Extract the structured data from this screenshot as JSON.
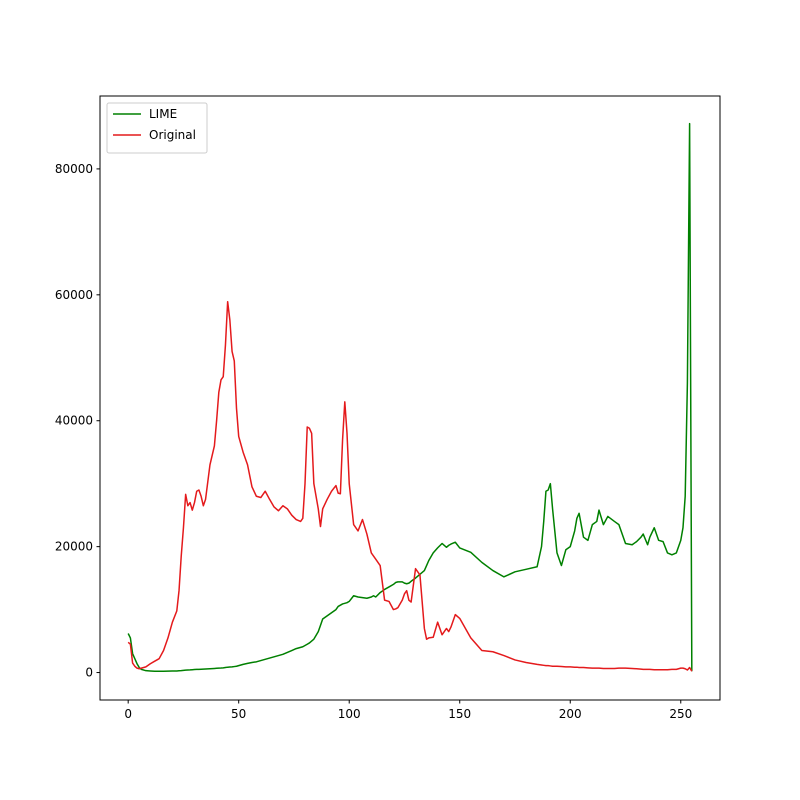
{
  "chart_data": {
    "type": "line",
    "x": [
      0,
      1,
      2,
      3,
      4,
      5,
      6,
      8,
      10,
      12,
      14,
      16,
      18,
      20,
      22,
      23,
      24,
      25,
      26,
      27,
      28,
      29,
      30,
      31,
      32,
      33,
      34,
      35,
      37,
      39,
      40,
      41,
      42,
      43,
      44,
      45,
      46,
      47,
      48,
      49,
      50,
      52,
      54,
      56,
      58,
      60,
      62,
      64,
      66,
      68,
      70,
      72,
      74,
      76,
      78,
      79,
      80,
      81,
      82,
      83,
      84,
      86,
      87,
      88,
      90,
      92,
      94,
      95,
      96,
      97,
      98,
      99,
      100,
      102,
      104,
      106,
      108,
      110,
      111,
      112,
      114,
      116,
      118,
      120,
      121,
      122,
      124,
      125,
      126,
      127,
      128,
      130,
      132,
      134,
      135,
      136,
      138,
      140,
      142,
      144,
      145,
      146,
      148,
      150,
      155,
      160,
      165,
      170,
      175,
      180,
      185,
      187,
      188,
      189,
      190,
      191,
      192,
      194,
      196,
      198,
      200,
      202,
      203,
      204,
      206,
      208,
      210,
      212,
      213,
      215,
      217,
      220,
      222,
      225,
      228,
      230,
      232,
      233,
      235,
      236,
      238,
      240,
      242,
      244,
      246,
      248,
      250,
      251,
      252,
      253,
      254,
      255
    ],
    "series": [
      {
        "name": "LIME",
        "color": "#008000",
        "values": [
          6200,
          5500,
          3000,
          2200,
          1400,
          800,
          500,
          300,
          250,
          200,
          200,
          200,
          220,
          250,
          250,
          280,
          300,
          350,
          380,
          400,
          420,
          450,
          480,
          500,
          500,
          520,
          540,
          560,
          600,
          650,
          680,
          700,
          720,
          750,
          800,
          850,
          880,
          900,
          950,
          1000,
          1100,
          1300,
          1450,
          1600,
          1700,
          1900,
          2100,
          2300,
          2500,
          2700,
          2900,
          3200,
          3500,
          3800,
          4000,
          4100,
          4300,
          4500,
          4700,
          5000,
          5300,
          6500,
          7500,
          8500,
          9000,
          9500,
          10000,
          10500,
          10700,
          10900,
          11000,
          11100,
          11300,
          12200,
          12000,
          11900,
          11800,
          12000,
          12200,
          12000,
          12700,
          13200,
          13600,
          14000,
          14300,
          14400,
          14400,
          14200,
          14100,
          14200,
          14500,
          15000,
          15600,
          16200,
          17000,
          17800,
          19000,
          19800,
          20500,
          19900,
          20200,
          20400,
          20700,
          19800,
          19100,
          17500,
          16200,
          15200,
          16000,
          16400,
          16800,
          20000,
          24000,
          28800,
          29000,
          30000,
          26000,
          19000,
          17000,
          19500,
          20000,
          22500,
          24500,
          25300,
          21500,
          21000,
          23500,
          24000,
          25800,
          23500,
          24800,
          24000,
          23500,
          20500,
          20300,
          20800,
          21500,
          22000,
          20300,
          21500,
          23000,
          21000,
          20800,
          19000,
          18700,
          19000,
          21000,
          23000,
          28000,
          46000,
          87200,
          200
        ]
      },
      {
        "name": "Original",
        "color": "#e41a1c",
        "values": [
          4800,
          4500,
          1500,
          1000,
          700,
          600,
          700,
          900,
          1400,
          1800,
          2200,
          3500,
          5500,
          8000,
          9800,
          13000,
          18500,
          23000,
          28300,
          26500,
          27000,
          25800,
          27000,
          28800,
          29000,
          28000,
          26500,
          27500,
          33000,
          36000,
          40000,
          44500,
          46500,
          47000,
          52000,
          58900,
          56000,
          51000,
          49500,
          42000,
          37500,
          35000,
          33000,
          29500,
          28000,
          27800,
          28800,
          27500,
          26300,
          25700,
          26500,
          26000,
          25000,
          24300,
          24000,
          24500,
          30000,
          39000,
          38800,
          38000,
          30000,
          26000,
          23200,
          26000,
          27500,
          28800,
          29700,
          28500,
          28400,
          37000,
          43000,
          38000,
          30000,
          23500,
          22500,
          24300,
          22000,
          19000,
          18500,
          18000,
          17000,
          11500,
          11300,
          10000,
          10100,
          10300,
          11500,
          12500,
          13000,
          11500,
          11200,
          16500,
          15500,
          7000,
          5300,
          5500,
          5600,
          8000,
          6000,
          7000,
          6500,
          7200,
          9200,
          8600,
          5500,
          3500,
          3300,
          2700,
          2000,
          1600,
          1300,
          1200,
          1150,
          1100,
          1100,
          1050,
          1000,
          1000,
          950,
          900,
          900,
          850,
          850,
          800,
          800,
          750,
          700,
          700,
          700,
          650,
          650,
          650,
          700,
          700,
          650,
          600,
          550,
          500,
          500,
          500,
          450,
          450,
          450,
          450,
          500,
          500,
          700,
          700,
          600,
          400,
          800,
          200
        ]
      }
    ],
    "xlim": [
      -12.75,
      267.75
    ],
    "ylim": [
      -4361,
      91581
    ],
    "xticks": [
      0,
      50,
      100,
      150,
      200,
      250
    ],
    "yticks": [
      0,
      20000,
      40000,
      60000,
      80000
    ],
    "grid": false,
    "legend": "upper left"
  }
}
